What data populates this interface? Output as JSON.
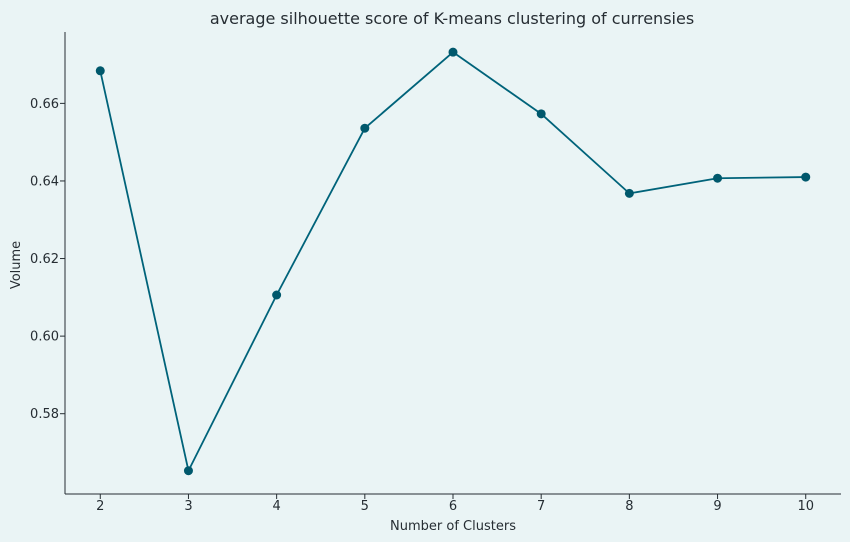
{
  "chart_data": {
    "type": "line",
    "title": "average silhouette score of K-means clustering of currensies",
    "xlabel": "Number of Clusters",
    "ylabel": "Volume",
    "x": [
      2,
      3,
      4,
      5,
      6,
      7,
      8,
      9,
      10
    ],
    "series": [
      {
        "values": [
          0.6684,
          0.5653,
          0.6106,
          0.6536,
          0.6732,
          0.6573,
          0.6368,
          0.6407,
          0.641
        ]
      }
    ],
    "xticks": [
      2,
      3,
      4,
      5,
      6,
      7,
      8,
      9,
      10
    ],
    "yticks": [
      0.58,
      0.6,
      0.62,
      0.64,
      0.66
    ],
    "ytick_labels": [
      "0.58",
      "0.60",
      "0.62",
      "0.64",
      "0.66"
    ],
    "xlim": [
      1.6,
      10.4
    ],
    "ylim": [
      0.5593,
      0.6784
    ],
    "grid": false,
    "legend": "none",
    "colors": {
      "line": "#00637A",
      "marker": "#00586C",
      "background": "#EAF4F5",
      "axis": "#262D33"
    }
  }
}
